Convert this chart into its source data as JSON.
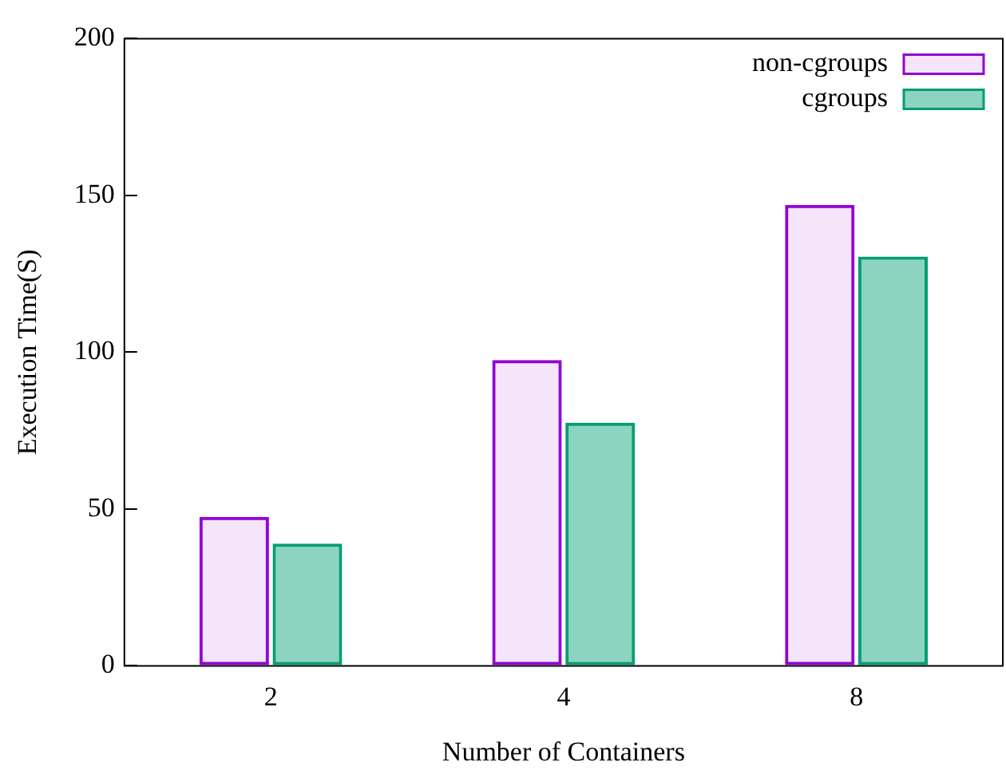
{
  "chart_data": {
    "type": "bar",
    "xlabel": "Number of Containers",
    "ylabel": "Execution Time(S)",
    "categories": [
      "2",
      "4",
      "8"
    ],
    "series": [
      {
        "name": "non-cgroups",
        "color": "#9400d3",
        "values": [
          47.5,
          97.5,
          147
        ]
      },
      {
        "name": "cgroups",
        "color": "#009e73",
        "values": [
          39,
          77.5,
          130.5
        ]
      }
    ],
    "ylim": [
      0,
      200
    ],
    "yticks": [
      0,
      50,
      100,
      150,
      200
    ],
    "grid": false,
    "legend": "top right"
  }
}
